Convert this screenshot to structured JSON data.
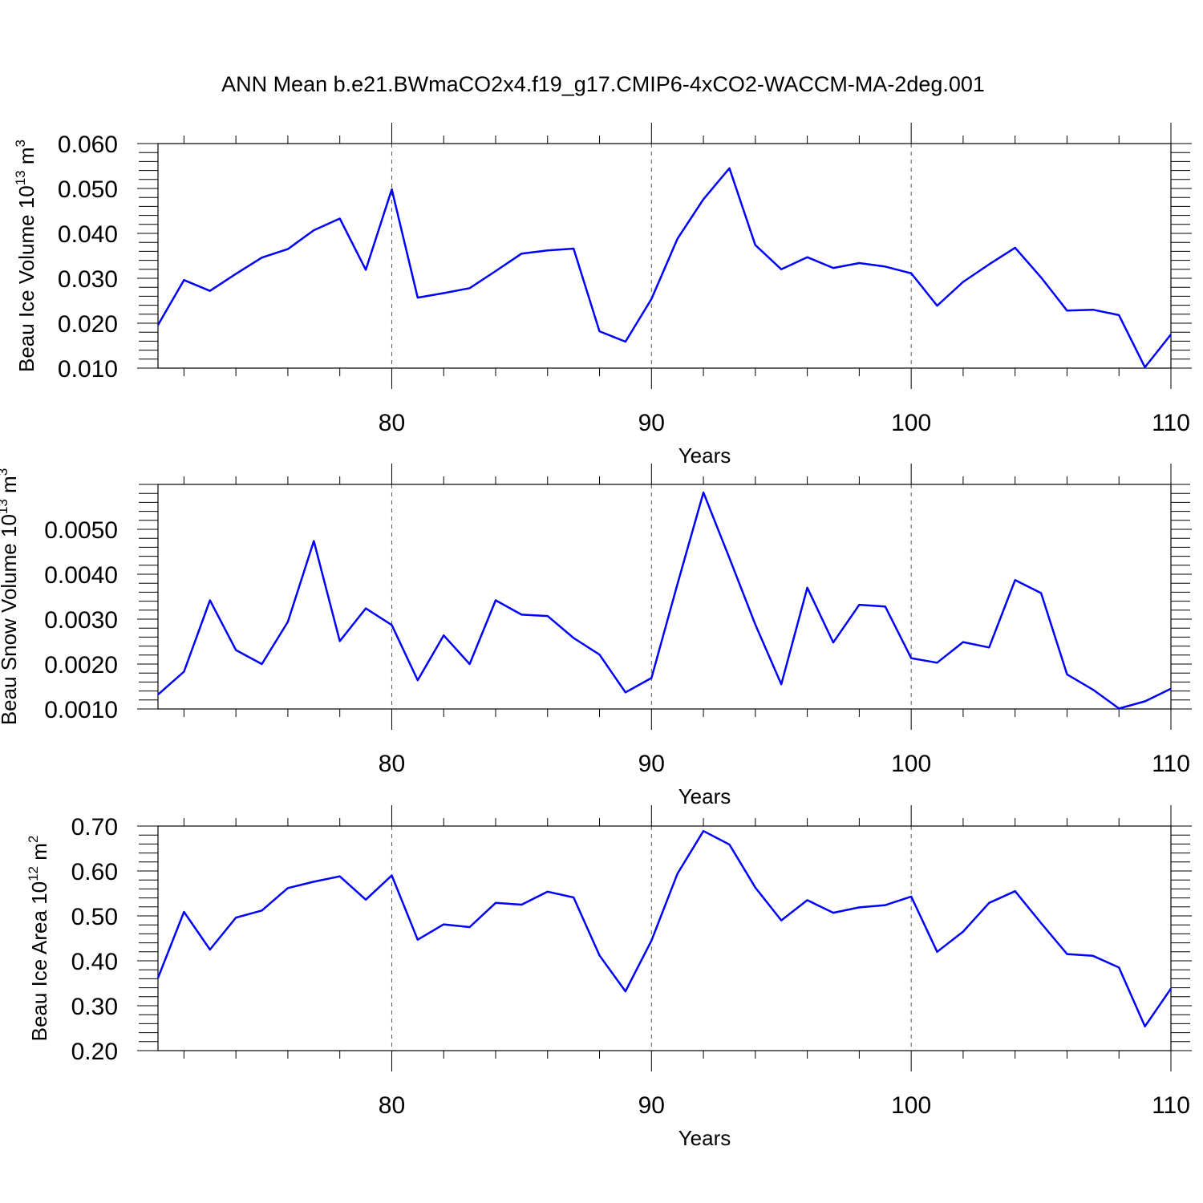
{
  "title": "ANN Mean b.e21.BWmaCO2x4.f19_g17.CMIP6-4xCO2-WACCM-MA-2deg.001",
  "line_color": "#0000ff",
  "chart_data": [
    {
      "type": "line",
      "ylabel": "Beau Ice Volume 10",
      "ylabel_sup": "13",
      "ylabel_unit": " m",
      "ylabel_unit_sup": "3",
      "xlabel": "Years",
      "xlim": [
        71,
        110
      ],
      "ylim": [
        0.01,
        0.06
      ],
      "yticks": [
        0.01,
        0.02,
        0.03,
        0.04,
        0.05,
        0.06
      ],
      "ytick_labels": [
        "0.010",
        "0.020",
        "0.030",
        "0.040",
        "0.050",
        "0.060"
      ],
      "xticks": [
        80,
        90,
        100,
        110
      ],
      "xtick_labels": [
        "80",
        "90",
        "100",
        "110"
      ],
      "dashed_grid_x": [
        80,
        90,
        100
      ],
      "x": [
        71,
        72,
        73,
        74,
        75,
        76,
        77,
        78,
        79,
        80,
        81,
        82,
        83,
        84,
        85,
        86,
        87,
        88,
        89,
        90,
        91,
        92,
        93,
        94,
        95,
        96,
        97,
        98,
        99,
        100,
        101,
        102,
        103,
        104,
        105,
        106,
        107,
        108,
        109,
        110
      ],
      "values": [
        0.0196,
        0.0296,
        0.0272,
        0.031,
        0.0346,
        0.0365,
        0.0407,
        0.0433,
        0.0319,
        0.0498,
        0.0257,
        0.0267,
        0.0278,
        0.0316,
        0.0355,
        0.0362,
        0.0366,
        0.0182,
        0.0159,
        0.0254,
        0.0388,
        0.0476,
        0.0545,
        0.0374,
        0.032,
        0.0347,
        0.0323,
        0.0334,
        0.0326,
        0.0311,
        0.0239,
        0.0292,
        0.0331,
        0.0368,
        0.0302,
        0.0228,
        0.023,
        0.0218,
        0.0102,
        0.0175
      ]
    },
    {
      "type": "line",
      "ylabel": "Beau Snow Volume 10",
      "ylabel_sup": "13",
      "ylabel_unit": " m",
      "ylabel_unit_sup": "3",
      "xlabel": "Years",
      "xlim": [
        71,
        110
      ],
      "ylim": [
        0.001,
        0.006
      ],
      "yticks": [
        0.001,
        0.002,
        0.003,
        0.004,
        0.005
      ],
      "ytick_labels": [
        "0.0010",
        "0.0020",
        "0.0030",
        "0.0040",
        "0.0050"
      ],
      "xticks": [
        80,
        90,
        100,
        110
      ],
      "xtick_labels": [
        "80",
        "90",
        "100",
        "110"
      ],
      "dashed_grid_x": [
        80,
        90,
        100
      ],
      "x": [
        71,
        72,
        73,
        74,
        75,
        76,
        77,
        78,
        79,
        80,
        81,
        82,
        83,
        84,
        85,
        86,
        87,
        88,
        89,
        90,
        91,
        92,
        93,
        94,
        95,
        96,
        97,
        98,
        99,
        100,
        101,
        102,
        103,
        104,
        105,
        106,
        107,
        108,
        109,
        110
      ],
      "values": [
        0.00132,
        0.00183,
        0.00342,
        0.00231,
        0.002,
        0.00294,
        0.00474,
        0.00251,
        0.00324,
        0.00287,
        0.00164,
        0.00264,
        0.002,
        0.00342,
        0.0031,
        0.00307,
        0.00258,
        0.00221,
        0.00137,
        0.00169,
        0.00378,
        0.00582,
        0.00436,
        0.00288,
        0.00155,
        0.0037,
        0.00248,
        0.00332,
        0.00328,
        0.00213,
        0.00203,
        0.00249,
        0.00237,
        0.00387,
        0.00358,
        0.00177,
        0.00143,
        0.00101,
        0.00117,
        0.00145
      ]
    },
    {
      "type": "line",
      "ylabel": "Beau Ice Area 10",
      "ylabel_sup": "12",
      "ylabel_unit": " m",
      "ylabel_unit_sup": "2",
      "xlabel": "Years",
      "xlim": [
        71,
        110
      ],
      "ylim": [
        0.2,
        0.7
      ],
      "yticks": [
        0.2,
        0.3,
        0.4,
        0.5,
        0.6,
        0.7
      ],
      "ytick_labels": [
        "0.20",
        "0.30",
        "0.40",
        "0.50",
        "0.60",
        "0.70"
      ],
      "xticks": [
        80,
        90,
        100,
        110
      ],
      "xtick_labels": [
        "80",
        "90",
        "100",
        "110"
      ],
      "dashed_grid_x": [
        80,
        90,
        100
      ],
      "x": [
        71,
        72,
        73,
        74,
        75,
        76,
        77,
        78,
        79,
        80,
        81,
        82,
        83,
        84,
        85,
        86,
        87,
        88,
        89,
        90,
        91,
        92,
        93,
        94,
        95,
        96,
        97,
        98,
        99,
        100,
        101,
        102,
        103,
        104,
        105,
        106,
        107,
        108,
        109,
        110
      ],
      "values": [
        0.362,
        0.509,
        0.425,
        0.496,
        0.512,
        0.562,
        0.576,
        0.588,
        0.536,
        0.59,
        0.447,
        0.481,
        0.475,
        0.529,
        0.525,
        0.554,
        0.541,
        0.412,
        0.332,
        0.445,
        0.594,
        0.689,
        0.659,
        0.563,
        0.49,
        0.535,
        0.507,
        0.519,
        0.524,
        0.543,
        0.42,
        0.465,
        0.529,
        0.555,
        0.484,
        0.415,
        0.411,
        0.385,
        0.254,
        0.338
      ]
    }
  ]
}
